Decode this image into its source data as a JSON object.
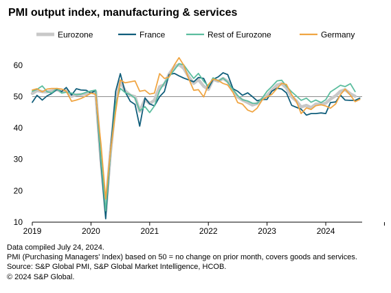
{
  "chart_data": {
    "type": "line",
    "title": "PMI output index, manufacturing & services",
    "xlabel": "",
    "ylabel": "",
    "x_range": [
      2019.0,
      2024.62
    ],
    "ylim": [
      10,
      65
    ],
    "yticks": [
      10,
      20,
      30,
      40,
      50,
      60
    ],
    "year_labels": [
      "2019",
      "2020",
      "2021",
      "2022",
      "2023",
      "2024"
    ],
    "reference_line": 50,
    "legend_position": "top",
    "grid": false,
    "series": [
      {
        "name": "Eurozone",
        "color": "#c8c8c8",
        "x": [
          2019.0,
          2019.08,
          2019.17,
          2019.25,
          2019.33,
          2019.42,
          2019.5,
          2019.58,
          2019.67,
          2019.75,
          2019.83,
          2019.92,
          2020.0,
          2020.08,
          2020.17,
          2020.25,
          2020.33,
          2020.42,
          2020.5,
          2020.58,
          2020.67,
          2020.75,
          2020.83,
          2020.92,
          2021.0,
          2021.08,
          2021.17,
          2021.25,
          2021.33,
          2021.42,
          2021.5,
          2021.58,
          2021.67,
          2021.75,
          2021.83,
          2021.92,
          2022.0,
          2022.08,
          2022.17,
          2022.25,
          2022.33,
          2022.42,
          2022.5,
          2022.58,
          2022.67,
          2022.75,
          2022.83,
          2022.92,
          2023.0,
          2023.08,
          2023.17,
          2023.25,
          2023.33,
          2023.42,
          2023.5,
          2023.58,
          2023.67,
          2023.75,
          2023.83,
          2023.92,
          2024.0,
          2024.08,
          2024.17,
          2024.25,
          2024.33,
          2024.42,
          2024.5
        ],
        "values": [
          51.0,
          51.9,
          51.6,
          51.5,
          51.8,
          52.2,
          51.5,
          51.9,
          50.1,
          50.6,
          50.6,
          50.9,
          51.3,
          51.6,
          29.7,
          13.6,
          31.9,
          48.5,
          54.9,
          51.9,
          50.4,
          50.0,
          45.3,
          49.1,
          47.8,
          48.8,
          53.2,
          53.8,
          57.1,
          59.5,
          60.2,
          59.0,
          56.2,
          54.2,
          55.4,
          53.3,
          52.3,
          55.5,
          54.9,
          55.8,
          54.8,
          52.0,
          49.9,
          48.9,
          48.1,
          47.3,
          47.8,
          49.3,
          50.3,
          52.0,
          53.7,
          54.1,
          52.8,
          49.9,
          48.6,
          46.7,
          47.2,
          46.5,
          47.6,
          47.6,
          47.9,
          49.2,
          50.3,
          51.7,
          52.2,
          50.9,
          50.1
        ]
      },
      {
        "name": "France",
        "color": "#0f5d7a",
        "x": [
          2019.0,
          2019.08,
          2019.17,
          2019.25,
          2019.33,
          2019.42,
          2019.5,
          2019.58,
          2019.67,
          2019.75,
          2019.83,
          2019.92,
          2020.0,
          2020.08,
          2020.17,
          2020.25,
          2020.33,
          2020.42,
          2020.5,
          2020.58,
          2020.67,
          2020.75,
          2020.83,
          2020.92,
          2021.0,
          2021.08,
          2021.17,
          2021.25,
          2021.33,
          2021.42,
          2021.5,
          2021.58,
          2021.67,
          2021.75,
          2021.83,
          2021.92,
          2022.0,
          2022.08,
          2022.17,
          2022.25,
          2022.33,
          2022.42,
          2022.5,
          2022.58,
          2022.67,
          2022.75,
          2022.83,
          2022.92,
          2023.0,
          2023.08,
          2023.17,
          2023.25,
          2023.33,
          2023.42,
          2023.5,
          2023.58,
          2023.67,
          2023.75,
          2023.83,
          2023.92,
          2024.0,
          2024.08,
          2024.17,
          2024.25,
          2024.33,
          2024.42,
          2024.5,
          2024.58
        ],
        "values": [
          48.2,
          50.4,
          48.9,
          50.2,
          51.0,
          52.3,
          51.6,
          52.9,
          50.5,
          52.5,
          52.1,
          52.0,
          51.1,
          52.0,
          28.9,
          11.1,
          32.1,
          51.7,
          57.3,
          51.6,
          48.5,
          47.5,
          40.6,
          49.6,
          47.7,
          47.0,
          50.0,
          51.6,
          57.0,
          57.4,
          56.6,
          55.9,
          55.3,
          54.7,
          56.1,
          55.8,
          52.7,
          55.5,
          56.3,
          57.6,
          57.0,
          52.5,
          51.7,
          50.4,
          51.2,
          50.0,
          48.7,
          49.1,
          49.1,
          51.7,
          52.7,
          52.4,
          51.2,
          47.2,
          46.6,
          46.0,
          44.1,
          44.6,
          44.6,
          44.8,
          44.6,
          48.1,
          48.3,
          50.5,
          48.9,
          48.8,
          48.8,
          49.5
        ]
      },
      {
        "name": "Rest of Eurozone",
        "color": "#5bbd9e",
        "x": [
          2019.0,
          2019.08,
          2019.17,
          2019.25,
          2019.33,
          2019.42,
          2019.5,
          2019.58,
          2019.67,
          2019.75,
          2019.83,
          2019.92,
          2020.0,
          2020.08,
          2020.17,
          2020.25,
          2020.33,
          2020.42,
          2020.5,
          2020.58,
          2020.67,
          2020.75,
          2020.83,
          2020.92,
          2021.0,
          2021.08,
          2021.17,
          2021.25,
          2021.33,
          2021.42,
          2021.5,
          2021.58,
          2021.67,
          2021.75,
          2021.83,
          2021.92,
          2022.0,
          2022.08,
          2022.17,
          2022.25,
          2022.33,
          2022.42,
          2022.5,
          2022.58,
          2022.67,
          2022.75,
          2022.83,
          2022.92,
          2023.0,
          2023.08,
          2023.17,
          2023.25,
          2023.33,
          2023.42,
          2023.5,
          2023.58,
          2023.67,
          2023.75,
          2023.83,
          2023.92,
          2024.0,
          2024.08,
          2024.17,
          2024.25,
          2024.33,
          2024.42,
          2024.5
        ],
        "values": [
          51.7,
          52.3,
          53.4,
          51.6,
          51.2,
          52.6,
          51.1,
          51.4,
          51.1,
          50.6,
          50.8,
          51.4,
          51.8,
          52.1,
          30.2,
          13.6,
          31.6,
          47.8,
          52.6,
          51.3,
          50.6,
          49.5,
          45.5,
          46.8,
          44.9,
          47.0,
          51.9,
          54.4,
          56.3,
          58.5,
          60.5,
          60.1,
          57.8,
          55.8,
          57.4,
          54.9,
          53.3,
          56.0,
          55.0,
          55.9,
          54.6,
          52.2,
          50.3,
          49.0,
          48.6,
          47.9,
          47.8,
          49.6,
          51.7,
          53.2,
          55.0,
          55.2,
          53.3,
          51.5,
          50.2,
          48.8,
          49.5,
          48.2,
          48.9,
          48.1,
          49.0,
          51.5,
          52.6,
          53.6,
          53.2,
          54.1,
          51.6
        ]
      },
      {
        "name": "Germany",
        "color": "#f0a542",
        "x": [
          2019.0,
          2019.08,
          2019.17,
          2019.25,
          2019.33,
          2019.42,
          2019.5,
          2019.58,
          2019.67,
          2019.75,
          2019.83,
          2019.92,
          2020.0,
          2020.08,
          2020.17,
          2020.25,
          2020.33,
          2020.42,
          2020.5,
          2020.58,
          2020.67,
          2020.75,
          2020.83,
          2020.92,
          2021.0,
          2021.08,
          2021.17,
          2021.25,
          2021.33,
          2021.42,
          2021.5,
          2021.58,
          2021.67,
          2021.75,
          2021.83,
          2021.92,
          2022.0,
          2022.08,
          2022.17,
          2022.25,
          2022.33,
          2022.42,
          2022.5,
          2022.58,
          2022.67,
          2022.75,
          2022.83,
          2022.92,
          2023.0,
          2023.08,
          2023.17,
          2023.25,
          2023.33,
          2023.42,
          2023.5,
          2023.58,
          2023.67,
          2023.75,
          2023.83,
          2023.92,
          2024.0,
          2024.08,
          2024.17,
          2024.25,
          2024.33,
          2024.42,
          2024.5,
          2024.58
        ],
        "values": [
          52.1,
          52.5,
          51.5,
          52.4,
          52.6,
          52.6,
          52.4,
          51.7,
          48.5,
          48.9,
          49.4,
          50.2,
          51.1,
          50.7,
          35.0,
          17.4,
          32.3,
          45.2,
          55.3,
          54.4,
          54.7,
          55.0,
          51.7,
          52.0,
          50.8,
          51.1,
          57.3,
          55.8,
          56.2,
          60.1,
          62.4,
          60.0,
          55.5,
          52.0,
          52.2,
          49.9,
          53.8,
          55.6,
          55.1,
          54.2,
          53.7,
          51.3,
          48.1,
          47.6,
          45.7,
          45.1,
          46.3,
          49.0,
          49.9,
          50.7,
          52.6,
          54.2,
          53.9,
          50.6,
          48.5,
          44.6,
          46.4,
          45.9,
          47.1,
          47.4,
          47.0,
          46.3,
          47.7,
          50.6,
          52.4,
          50.4,
          48.4,
          49.1
        ]
      }
    ]
  },
  "notes": [
    "Data compiled July 24, 2024.",
    "PMI (Purchasing Managers' Index) based on 50 = no change on prior month, covers goods and services.",
    "Source: S&P Global PMI, S&P Global Market Intelligence, HCOB.",
    "© 2024 S&P Global."
  ]
}
